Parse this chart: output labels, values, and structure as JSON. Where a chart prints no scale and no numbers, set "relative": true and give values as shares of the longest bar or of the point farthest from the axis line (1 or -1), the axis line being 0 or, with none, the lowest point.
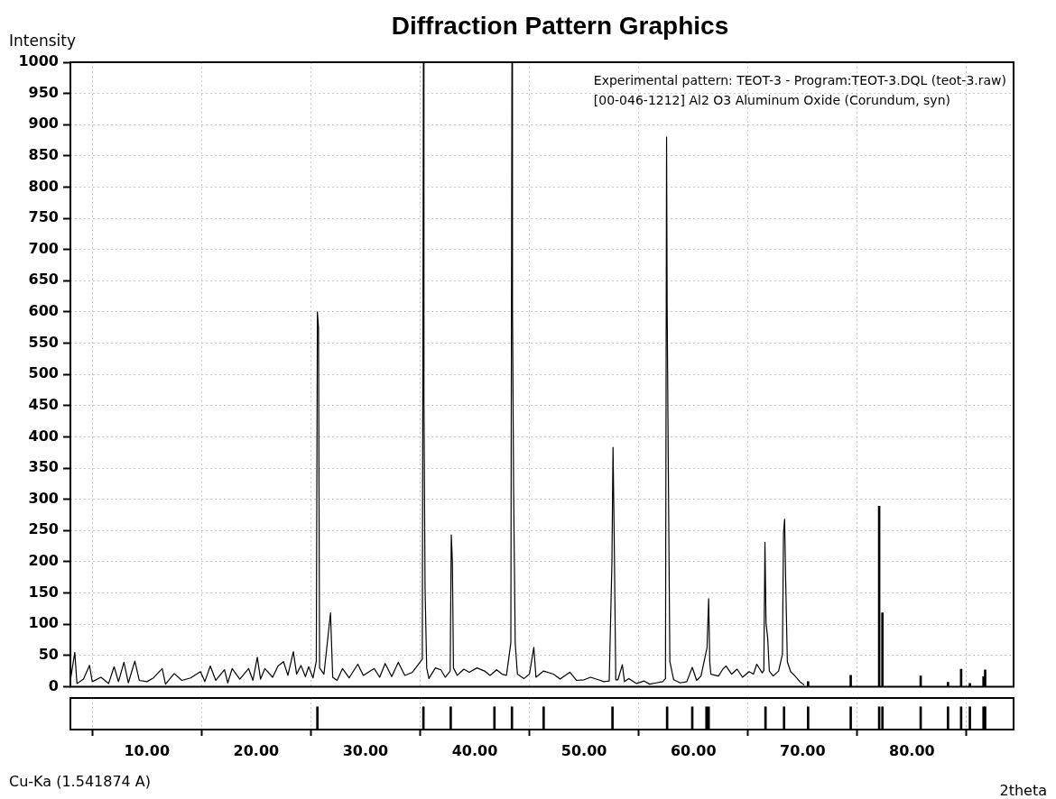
{
  "chart_data": [
    {
      "type": "line",
      "title": "Diffraction Pattern Graphics",
      "ylabel": "Intensity",
      "xlim": [
        3,
        89.3
      ],
      "xticks": [
        10,
        20,
        30,
        40,
        50,
        60,
        70,
        80
      ],
      "ylim": [
        0,
        1000
      ],
      "yticks": [
        0,
        50,
        100,
        150,
        200,
        250,
        300,
        350,
        400,
        450,
        500,
        550,
        600,
        650,
        700,
        750,
        800,
        850,
        900,
        950,
        1000
      ],
      "grid": true,
      "tick_labels": "y",
      "annotations": [
        "Experimental pattern: TEOT-3 - Program:TEOT-3.DQL (teot-3.raw)",
        "[00-046-1212] Al2 O3 Aluminum Oxide (Corundum, syn)"
      ],
      "series": [
        {
          "type": "line",
          "color": "#000000",
          "x": [
            3.0,
            3.4,
            3.6,
            4.2,
            4.75,
            5.0,
            5.8,
            6.5,
            7.0,
            7.4,
            7.9,
            8.3,
            8.9,
            9.3,
            10.0,
            10.6,
            11.4,
            11.7,
            12.5,
            13.2,
            14.0,
            14.9,
            15.3,
            15.8,
            16.3,
            17.1,
            17.4,
            17.8,
            18.5,
            19.3,
            19.7,
            20.1,
            20.4,
            20.8,
            21.5,
            22.0,
            22.5,
            22.9,
            23.4,
            23.7,
            24.1,
            24.5,
            24.8,
            25.2,
            25.5,
            25.6,
            25.7,
            25.8,
            26.2,
            26.8,
            27.0,
            27.4,
            27.9,
            28.5,
            29.3,
            29.8,
            30.8,
            31.3,
            31.8,
            32.4,
            33.0,
            33.6,
            34.3,
            35.2,
            35.3,
            35.35,
            35.45,
            35.6,
            35.8,
            36.4,
            36.9,
            37.3,
            37.75,
            37.85,
            37.95,
            38.05,
            38.4,
            39.0,
            39.5,
            40.2,
            40.9,
            41.4,
            42.0,
            42.5,
            42.9,
            43.3,
            43.4,
            43.45,
            43.55,
            43.7,
            43.9,
            44.5,
            45.0,
            45.4,
            45.6,
            45.8,
            46.3,
            47.2,
            47.8,
            48.7,
            49.3,
            50.0,
            50.6,
            51.3,
            51.8,
            52.3,
            52.55,
            52.65,
            52.75,
            52.9,
            53.1,
            53.5,
            53.7,
            54.1,
            54.8,
            55.5,
            56.0,
            56.6,
            57.2,
            57.45,
            57.55,
            57.6,
            57.7,
            57.85,
            58.2,
            58.8,
            59.4,
            59.9,
            60.3,
            60.7,
            61.25,
            61.4,
            61.5,
            61.6,
            62.3,
            62.7,
            63.0,
            63.5,
            64.0,
            64.5,
            65.1,
            65.5,
            65.8,
            66.3,
            66.45,
            66.55,
            66.65,
            66.8,
            66.95,
            67.3,
            67.8,
            68.15,
            68.25,
            68.35,
            68.45,
            68.6,
            68.9,
            69.3,
            69.75,
            70.1
          ],
          "values": [
            10,
            55,
            5,
            12,
            34,
            8,
            15,
            5,
            32,
            8,
            39,
            6,
            41,
            10,
            8,
            14,
            29,
            4,
            21,
            10,
            14,
            24,
            8,
            33,
            10,
            27,
            6,
            29,
            12,
            29,
            10,
            47,
            12,
            29,
            15,
            33,
            40,
            18,
            56,
            20,
            34,
            16,
            32,
            14,
            41,
            600,
            575,
            30,
            20,
            118,
            15,
            10,
            29,
            14,
            36,
            18,
            29,
            15,
            37,
            16,
            39,
            18,
            23,
            44,
            1000,
            465,
            158,
            30,
            13,
            30,
            27,
            15,
            25,
            243,
            200,
            30,
            18,
            28,
            23,
            30,
            25,
            18,
            27,
            20,
            18,
            70,
            1000,
            610,
            321,
            70,
            20,
            13,
            20,
            63,
            15,
            18,
            25,
            20,
            12,
            23,
            10,
            11,
            15,
            11,
            8,
            9,
            199,
            383,
            250,
            11,
            11,
            35,
            8,
            13,
            5,
            9,
            4,
            6,
            8,
            13,
            880,
            615,
            368,
            40,
            11,
            6,
            8,
            31,
            10,
            17,
            62,
            141,
            40,
            20,
            17,
            28,
            33,
            20,
            28,
            15,
            24,
            20,
            36,
            22,
            26,
            231,
            102,
            78,
            25,
            17,
            25,
            52,
            246,
            268,
            168,
            40,
            24,
            17,
            8,
            3
          ]
        },
        {
          "type": "bar",
          "color": "#000000",
          "x": [
            70.5,
            74.4,
            77.0,
            77.3,
            80.8,
            83.3,
            84.5,
            85.3,
            86.55,
            86.7
          ],
          "values": [
            8,
            18,
            289,
            118,
            17,
            7,
            28,
            5,
            16,
            27
          ]
        }
      ]
    },
    {
      "type": "bar",
      "relative": true,
      "color": "#000000",
      "xlabel": "2theta",
      "tick_labels": "x",
      "grid": "x",
      "annotations": [
        "Cu-Ka (1.541874 A)"
      ],
      "xlim": [
        3,
        89.3
      ],
      "xticks": [
        {
          "value": 10,
          "label": "10.00"
        },
        {
          "value": 20,
          "label": "20.00"
        },
        {
          "value": 30,
          "label": "30.00"
        },
        {
          "value": 40,
          "label": "40.00"
        },
        {
          "value": 50,
          "label": "50.00"
        },
        {
          "value": 60,
          "label": "60.00"
        },
        {
          "value": 70,
          "label": "70.00"
        },
        {
          "value": 80,
          "label": "80.00"
        }
      ],
      "x": [
        25.6,
        35.3,
        37.8,
        41.8,
        43.4,
        46.3,
        52.6,
        57.6,
        59.9,
        61.2,
        61.4,
        66.6,
        68.3,
        70.5,
        74.4,
        77.0,
        77.3,
        80.8,
        83.3,
        84.5,
        85.3,
        86.55,
        86.7
      ],
      "values": [
        1,
        1,
        1,
        1,
        1,
        1,
        1,
        1,
        1,
        1,
        1,
        1,
        1,
        1,
        1,
        1,
        1,
        1,
        1,
        1,
        1,
        1,
        1
      ]
    }
  ]
}
